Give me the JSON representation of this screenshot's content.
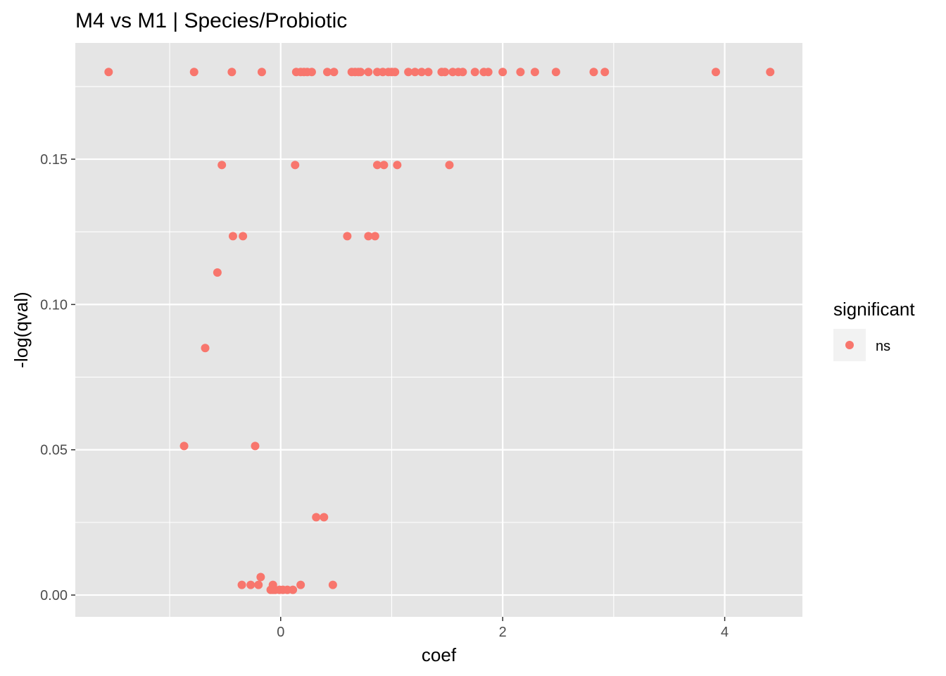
{
  "chart_data": {
    "type": "scatter",
    "title": "M4 vs M1 | Species/Probiotic",
    "xlabel": "coef",
    "ylabel": "-log(qval)",
    "xlim": [
      -1.85,
      4.7
    ],
    "ylim": [
      -0.0075,
      0.19
    ],
    "x_ticks": [
      0,
      2,
      4
    ],
    "x_tick_labels": [
      "0",
      "2",
      "4"
    ],
    "y_ticks": [
      0.0,
      0.05,
      0.1,
      0.15
    ],
    "y_tick_labels": [
      "0.00",
      "0.05",
      "0.10",
      "0.15"
    ],
    "grid": true,
    "panel_background": "#e5e5e5",
    "grid_color": "#ffffff",
    "legend": {
      "title": "significant",
      "position": "right",
      "entries": [
        {
          "label": "ns",
          "color": "#f8766d"
        }
      ]
    },
    "series": [
      {
        "name": "ns",
        "color": "#f8766d",
        "points": [
          [
            -1.55,
            0.18
          ],
          [
            -0.78,
            0.18
          ],
          [
            -0.44,
            0.18
          ],
          [
            -0.17,
            0.18
          ],
          [
            0.14,
            0.18
          ],
          [
            0.18,
            0.18
          ],
          [
            0.21,
            0.18
          ],
          [
            0.24,
            0.18
          ],
          [
            0.28,
            0.18
          ],
          [
            0.42,
            0.18
          ],
          [
            0.48,
            0.18
          ],
          [
            0.64,
            0.18
          ],
          [
            0.67,
            0.18
          ],
          [
            0.7,
            0.18
          ],
          [
            0.72,
            0.18
          ],
          [
            0.79,
            0.18
          ],
          [
            0.87,
            0.18
          ],
          [
            0.92,
            0.18
          ],
          [
            0.97,
            0.18
          ],
          [
            1.0,
            0.18
          ],
          [
            1.03,
            0.18
          ],
          [
            1.15,
            0.18
          ],
          [
            1.21,
            0.18
          ],
          [
            1.27,
            0.18
          ],
          [
            1.33,
            0.18
          ],
          [
            1.45,
            0.18
          ],
          [
            1.48,
            0.18
          ],
          [
            1.55,
            0.18
          ],
          [
            1.6,
            0.18
          ],
          [
            1.64,
            0.18
          ],
          [
            1.75,
            0.18
          ],
          [
            1.83,
            0.18
          ],
          [
            1.87,
            0.18
          ],
          [
            2.0,
            0.18
          ],
          [
            2.16,
            0.18
          ],
          [
            2.29,
            0.18
          ],
          [
            2.48,
            0.18
          ],
          [
            2.82,
            0.18
          ],
          [
            2.92,
            0.18
          ],
          [
            3.92,
            0.18
          ],
          [
            4.41,
            0.18
          ],
          [
            -0.53,
            0.148
          ],
          [
            0.13,
            0.148
          ],
          [
            0.87,
            0.148
          ],
          [
            0.93,
            0.148
          ],
          [
            1.05,
            0.148
          ],
          [
            1.52,
            0.148
          ],
          [
            -0.43,
            0.1235
          ],
          [
            -0.34,
            0.1235
          ],
          [
            0.6,
            0.1235
          ],
          [
            0.79,
            0.1235
          ],
          [
            0.85,
            0.1235
          ],
          [
            -0.57,
            0.111
          ],
          [
            -0.68,
            0.085
          ],
          [
            -0.87,
            0.0513
          ],
          [
            -0.23,
            0.0513
          ],
          [
            0.32,
            0.0268
          ],
          [
            0.39,
            0.0268
          ],
          [
            -0.18,
            0.0062
          ],
          [
            -0.35,
            0.0035
          ],
          [
            -0.27,
            0.0035
          ],
          [
            -0.2,
            0.0035
          ],
          [
            0.18,
            0.0035
          ],
          [
            0.47,
            0.0035
          ],
          [
            -0.07,
            0.0035
          ],
          [
            -0.09,
            0.0018
          ],
          [
            -0.07,
            0.0018
          ],
          [
            -0.05,
            0.0018
          ],
          [
            -0.01,
            0.0018
          ],
          [
            0.02,
            0.0018
          ],
          [
            0.06,
            0.0018
          ],
          [
            0.11,
            0.0018
          ]
        ]
      }
    ]
  }
}
